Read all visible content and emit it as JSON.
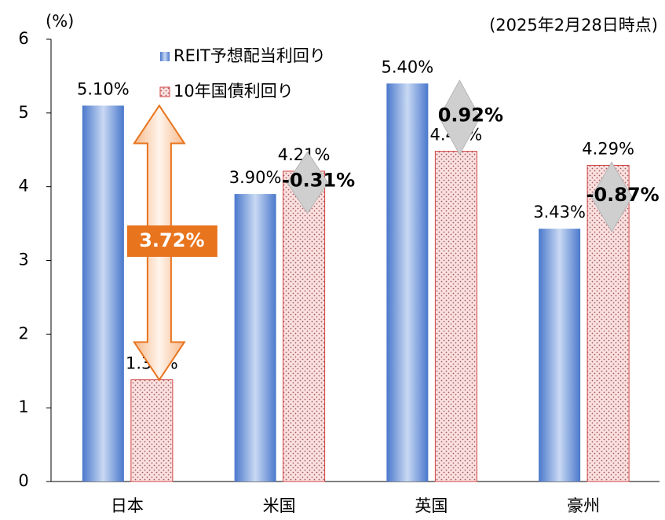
{
  "chart_data": {
    "type": "bar",
    "y_unit_label": "(%)",
    "note": "(2025年2月28日時点)",
    "categories": [
      "日本",
      "米国",
      "英国",
      "豪州"
    ],
    "series": [
      {
        "name": "REIT予想配当利回り",
        "color": "#4f7fd0",
        "values": [
          5.1,
          3.9,
          5.4,
          3.43
        ],
        "value_labels": [
          "5.10%",
          "3.90%",
          "5.40%",
          "3.43%"
        ]
      },
      {
        "name": "10年国債利回り",
        "color": "#f8d8d8",
        "values": [
          1.38,
          4.21,
          4.48,
          4.29
        ],
        "value_labels": [
          "1.38%",
          "4.21%",
          "4.48%",
          "4.29%"
        ]
      }
    ],
    "spread_labels": [
      "3.72%",
      "-0.31%",
      "0.92%",
      "-0.87%"
    ],
    "ylim": [
      0,
      6
    ],
    "yticks": [
      0,
      1,
      2,
      3,
      4,
      5,
      6
    ]
  }
}
